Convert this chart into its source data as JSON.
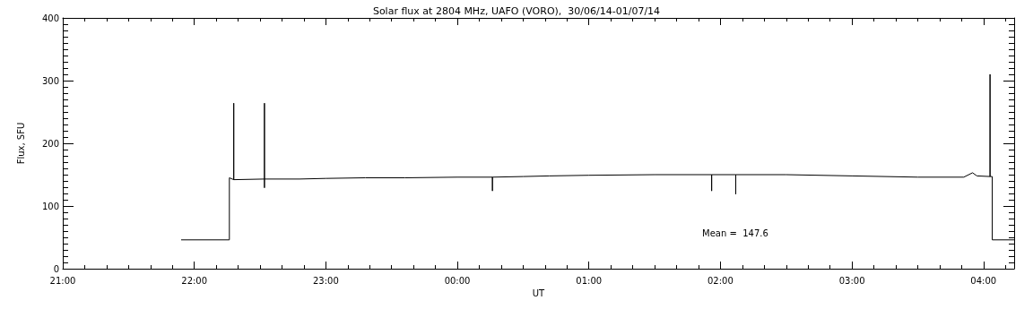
{
  "chart_data": {
    "type": "line",
    "title": "Solar flux at 2804 MHz, UAFO (VORO),  30/06/14-01/07/14",
    "xlabel": "UT",
    "ylabel": "Flux, SFU",
    "annotations": [
      "Mean =  147.6"
    ],
    "x": [
      "--06-30T21:54",
      "--06-30T22:16",
      "--06-30T22:16",
      "--06-30T22:18",
      "--06-30T22:18",
      "--06-30T22:18",
      "--06-30T22:32",
      "--06-30T22:32",
      "--06-30T22:32",
      "--06-30T22:32",
      "--06-30T22:48",
      "--06-30T23:00",
      "--06-30T23:18",
      "--06-30T23:36",
      "--07-01T00:00",
      "--07-01T00:16",
      "--07-01T00:16",
      "--07-01T00:16",
      "--07-01T00:30",
      "--07-01T00:42",
      "--07-01T01:00",
      "--07-01T01:30",
      "--07-01T01:56",
      "--07-01T01:56",
      "--07-01T01:56",
      "--07-01T02:07",
      "--07-01T02:07",
      "--07-01T02:07",
      "--07-01T02:30",
      "--07-01T03:00",
      "--07-01T03:30",
      "--07-01T03:51",
      "--07-01T03:55",
      "--07-01T03:57",
      "--07-01T04:03",
      "--07-01T04:03",
      "--07-01T04:03",
      "--07-01T04:04",
      "--07-01T04:04",
      "--07-01T04:14"
    ],
    "series": [
      {
        "color": "#000000",
        "values": [
          46,
          46,
          145,
          142,
          264,
          142,
          143,
          264,
          129,
          143,
          143,
          144,
          145,
          145,
          146,
          146,
          124,
          146,
          147,
          148,
          149,
          150,
          150,
          124,
          150,
          150,
          119,
          150,
          150,
          148,
          146,
          146,
          153,
          148,
          147,
          310,
          147,
          147,
          46,
          46
        ]
      }
    ],
    "xlim": [
      "--06-30T21:00",
      "--07-01T04:14"
    ],
    "xticks": [
      {
        "value": "--06-30T21:00",
        "label": "21:00"
      },
      {
        "value": "--06-30T22:00",
        "label": "22:00"
      },
      {
        "value": "--06-30T23:00",
        "label": "23:00"
      },
      {
        "value": "--07-01T00:00",
        "label": "00:00"
      },
      {
        "value": "--07-01T01:00",
        "label": "01:00"
      },
      {
        "value": "--07-01T02:00",
        "label": "02:00"
      },
      {
        "value": "--07-01T03:00",
        "label": "03:00"
      },
      {
        "value": "--07-01T04:00",
        "label": "04:00"
      }
    ],
    "ylim": [
      0,
      400
    ],
    "yticks": [
      0,
      100,
      200,
      300,
      400
    ],
    "grid": false,
    "marker": "none",
    "line_style": "solid"
  }
}
